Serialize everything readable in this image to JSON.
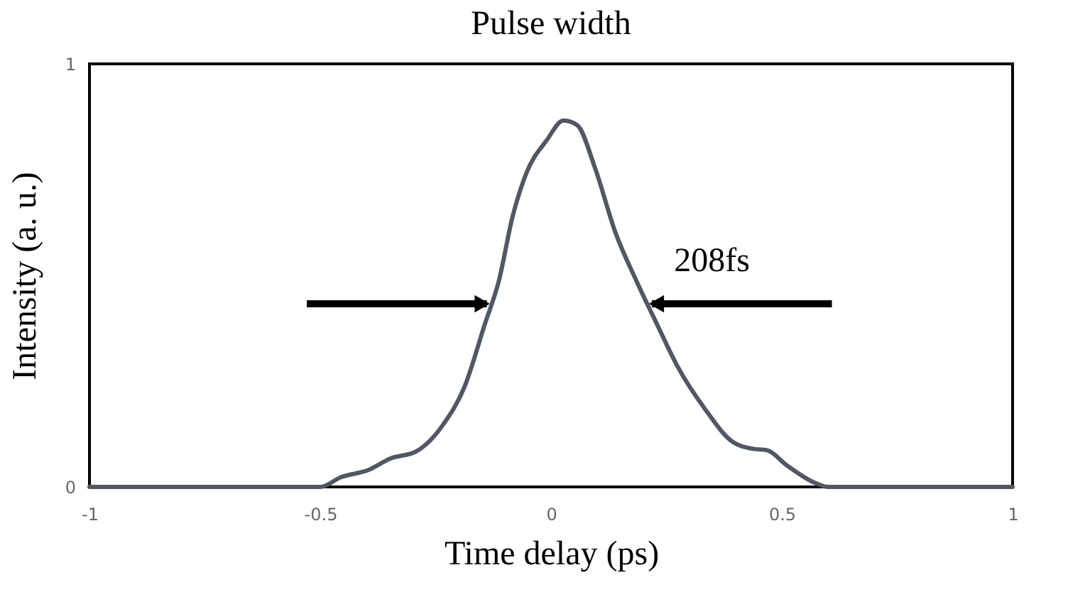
{
  "chart_data": {
    "type": "line",
    "title": "Pulse width",
    "xlabel": "Time delay (ps)",
    "ylabel": "Intensity (a. u.)",
    "x": [
      -1,
      -0.5,
      -0.455,
      -0.396,
      -0.348,
      -0.292,
      -0.232,
      -0.188,
      -0.143,
      -0.113,
      -0.083,
      -0.054,
      -0.009,
      0.027,
      0.057,
      0.095,
      0.14,
      0.185,
      0.229,
      0.274,
      0.333,
      0.393,
      0.438,
      0.467,
      0.512,
      0.571,
      0.6,
      1
    ],
    "series": [
      {
        "color": "#4f5864",
        "values": [
          0,
          0,
          0.023,
          0.04,
          0.067,
          0.084,
          0.15,
          0.235,
          0.386,
          0.487,
          0.64,
          0.74,
          0.82,
          0.866,
          0.855,
          0.755,
          0.6,
          0.487,
          0.386,
          0.285,
          0.185,
          0.107,
          0.09,
          0.087,
          0.05,
          0.01,
          0,
          0
        ]
      }
    ],
    "xlim": [
      -1,
      1
    ],
    "ylim": [
      0,
      1
    ],
    "xticks": [
      -1,
      -0.5,
      0,
      0.5,
      1
    ],
    "yticks": [
      0,
      1
    ],
    "annotations": [
      "208fs"
    ],
    "grid": false,
    "marker": "none",
    "line_style": "solid"
  }
}
